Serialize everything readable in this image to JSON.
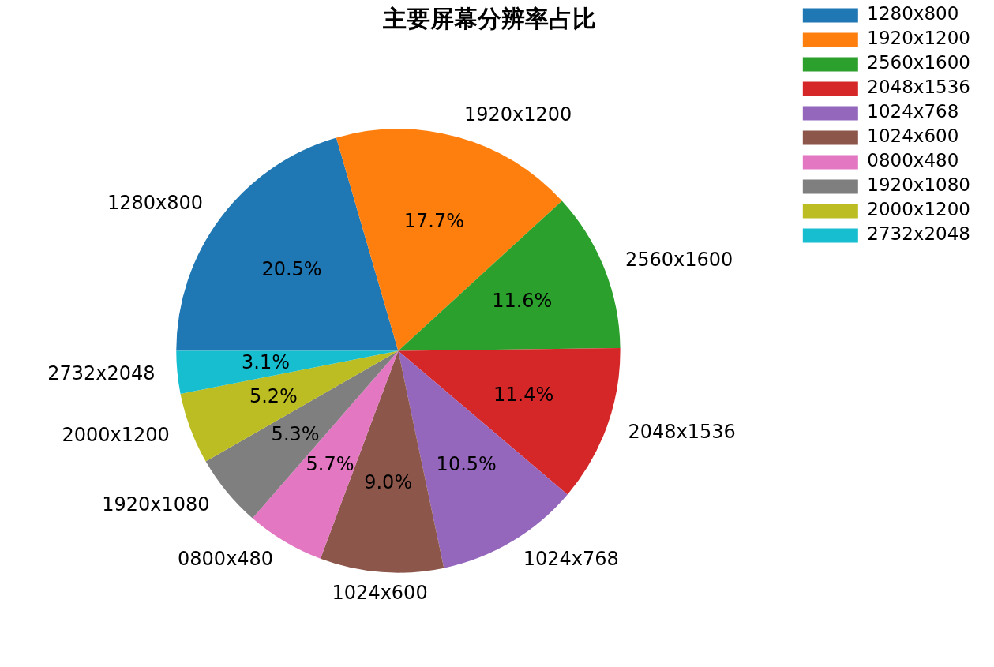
{
  "chart_data": {
    "type": "pie",
    "title": "主要屏幕分辨率占比",
    "categories": [
      "1280x800",
      "1920x1200",
      "2560x1600",
      "2048x1536",
      "1024x768",
      "1024x600",
      "0800x480",
      "1920x1080",
      "2000x1200",
      "2732x2048"
    ],
    "values": [
      20.5,
      17.7,
      11.6,
      11.4,
      10.5,
      9.0,
      5.7,
      5.3,
      5.2,
      3.1
    ],
    "value_labels": [
      "20.5%",
      "17.7%",
      "11.6%",
      "11.4%",
      "10.5%",
      "9.0%",
      "5.7%",
      "5.3%",
      "5.2%",
      "3.1%"
    ],
    "colors": [
      "#1f77b4",
      "#ff7f0e",
      "#2ca02c",
      "#d62728",
      "#9467bd",
      "#8c564b",
      "#e377c2",
      "#7f7f7f",
      "#bcbd22",
      "#17becf"
    ],
    "legend": "top right"
  }
}
